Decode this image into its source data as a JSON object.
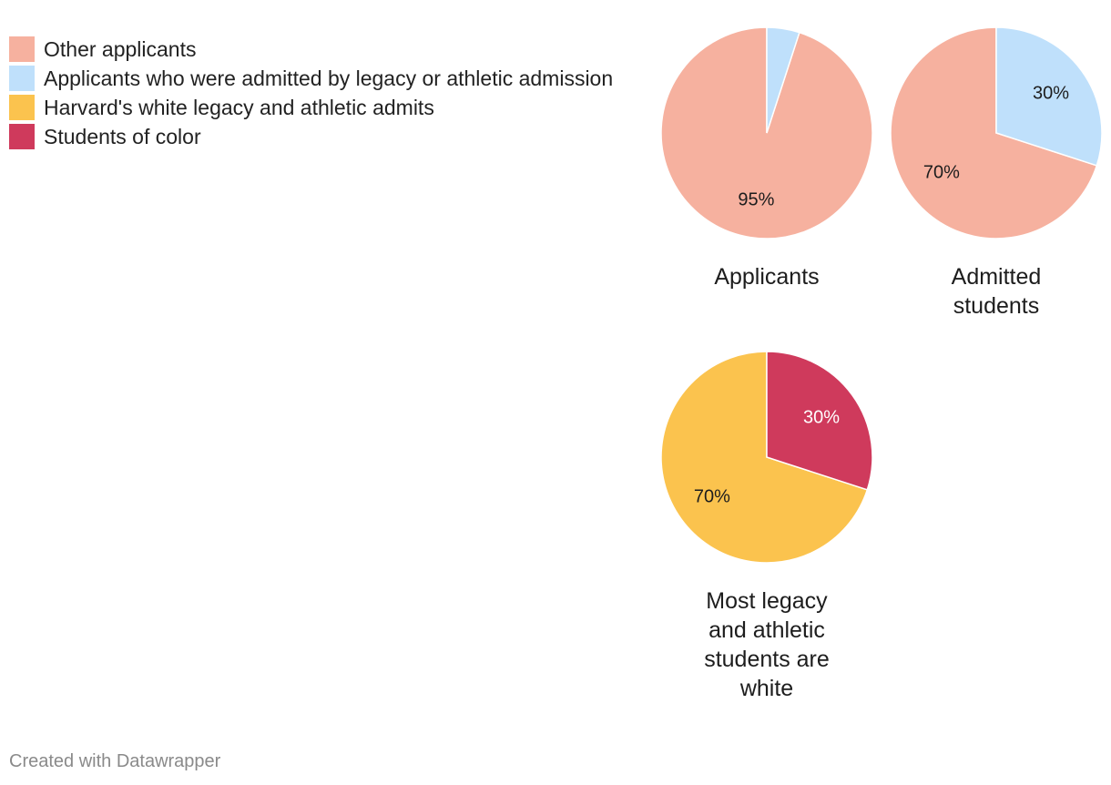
{
  "legend": [
    {
      "label": "Other applicants",
      "color": "#f6b19f"
    },
    {
      "label": "Applicants who were admitted by legacy or athletic admission",
      "color": "#bfe0fb"
    },
    {
      "label": "Harvard's white legacy and athletic admits",
      "color": "#fbc34e"
    },
    {
      "label": "Students of color",
      "color": "#cf3a5c"
    }
  ],
  "chart_data": [
    {
      "type": "pie",
      "title": "Applicants",
      "slices": [
        {
          "name": "Other applicants",
          "value": 95,
          "label": "95%",
          "color": "#f6b19f",
          "label_color": "#1d1d1d"
        },
        {
          "name": "Applicants who were admitted by legacy or athletic admission",
          "value": 5,
          "label": "",
          "color": "#bfe0fb",
          "label_color": "#1d1d1d"
        }
      ]
    },
    {
      "type": "pie",
      "title": "Admitted students",
      "slices": [
        {
          "name": "Other applicants",
          "value": 70,
          "label": "70%",
          "color": "#f6b19f",
          "label_color": "#1d1d1d"
        },
        {
          "name": "Applicants who were admitted by legacy or athletic admission",
          "value": 30,
          "label": "30%",
          "color": "#bfe0fb",
          "label_color": "#1d1d1d"
        }
      ]
    },
    {
      "type": "pie",
      "title": "Most legacy and athletic students are white",
      "slices": [
        {
          "name": "Harvard's white legacy and athletic admits",
          "value": 70,
          "label": "70%",
          "color": "#fbc34e",
          "label_color": "#1d1d1d"
        },
        {
          "name": "Students of color",
          "value": 30,
          "label": "30%",
          "color": "#cf3a5c",
          "label_color": "#ffffff"
        }
      ]
    }
  ],
  "footer": {
    "credit": "Created with Datawrapper"
  }
}
